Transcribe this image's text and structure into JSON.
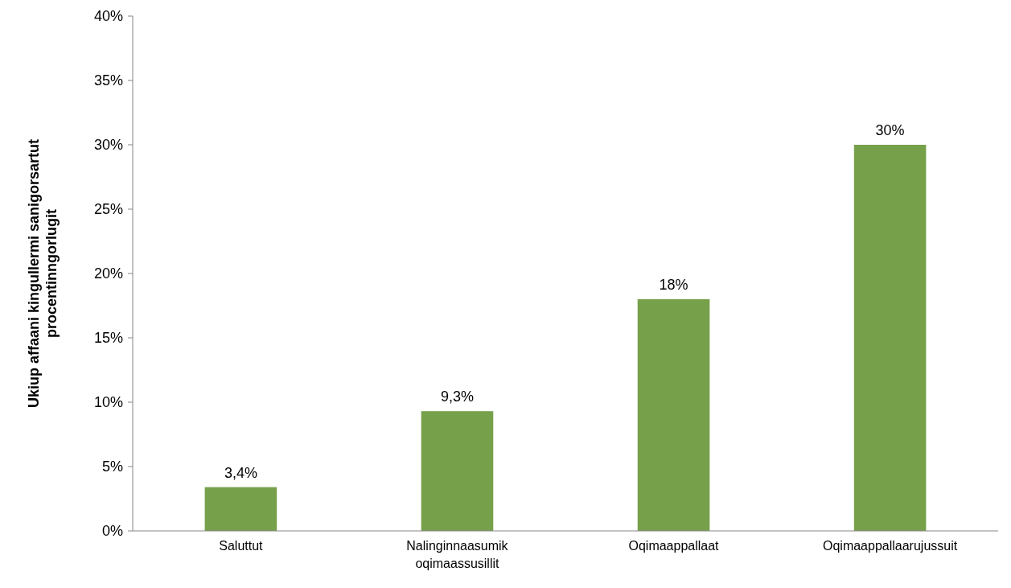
{
  "chart_data": {
    "type": "bar",
    "ylabel": "Ukiup affaani kingullermi sanigorsartut procentinngorlugit",
    "categories": [
      "Saluttut",
      "Nalinginnaasumik oqimaassusillit",
      "Oqimaappallaat",
      "Oqimaappallaarujussuit"
    ],
    "values": [
      3.4,
      9.3,
      18,
      30
    ],
    "value_labels": [
      "3,4%",
      "9,3%",
      "18%",
      "30%"
    ],
    "color": "#77a04a",
    "ylim": [
      0,
      40
    ],
    "yticks": [
      {
        "value": 0,
        "label": "0%"
      },
      {
        "value": 5,
        "label": "5%"
      },
      {
        "value": 10,
        "label": "10%"
      },
      {
        "value": 15,
        "label": "15%"
      },
      {
        "value": 20,
        "label": "20%"
      },
      {
        "value": 25,
        "label": "25%"
      },
      {
        "value": 30,
        "label": "30%"
      },
      {
        "value": 35,
        "label": "35%"
      },
      {
        "value": 40,
        "label": "40%"
      }
    ],
    "grid": false
  }
}
